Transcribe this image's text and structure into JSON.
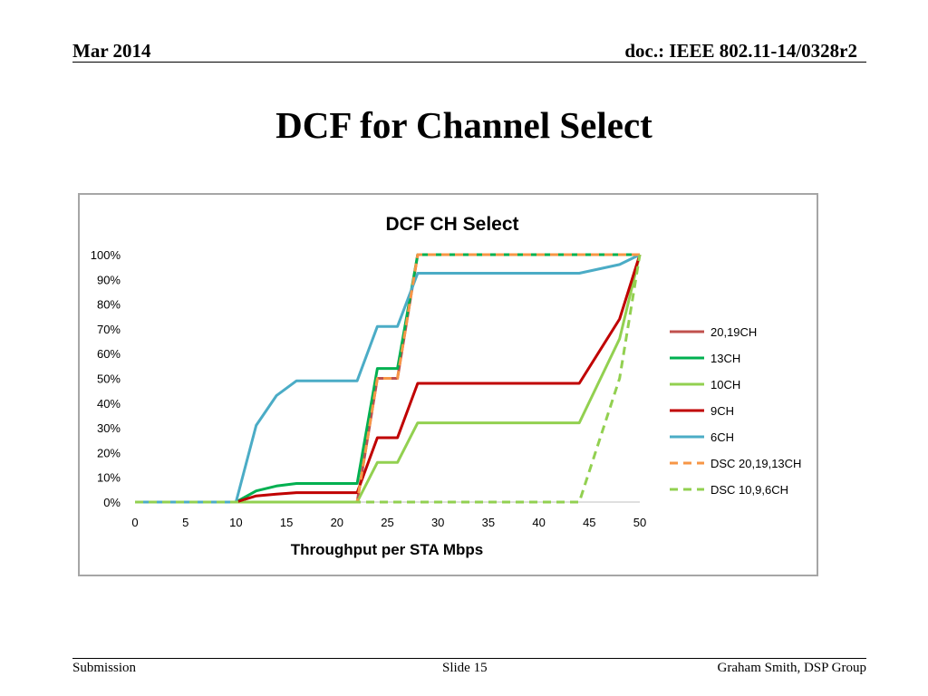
{
  "header": {
    "date": "Mar 2014",
    "doc_id": "doc.: IEEE 802.11-14/0328r2"
  },
  "slide_title": "DCF for Channel Select",
  "footer": {
    "left": "Submission",
    "center": "Slide 15",
    "right": "Graham Smith, DSP Group"
  },
  "chart_data": {
    "type": "line",
    "title": "DCF CH Select",
    "xlabel": "Throughput per STA Mbps",
    "ylabel": "",
    "xlim": [
      0,
      50
    ],
    "ylim": [
      0,
      100
    ],
    "x_ticks": [
      0,
      5,
      10,
      15,
      20,
      25,
      30,
      35,
      40,
      45,
      50
    ],
    "y_ticks": [
      "0%",
      "10%",
      "20%",
      "30%",
      "40%",
      "50%",
      "60%",
      "70%",
      "80%",
      "90%",
      "100%"
    ],
    "grid": false,
    "legend_position": "right",
    "series": [
      {
        "name": "20,19CH",
        "color": "#c0504d",
        "dashed": false,
        "x": [
          0,
          22,
          24,
          26,
          28,
          50
        ],
        "y": [
          0,
          0,
          50,
          50,
          100,
          100
        ]
      },
      {
        "name": "13CH",
        "color": "#00b050",
        "dashed": false,
        "x": [
          0,
          10,
          12,
          14,
          16,
          18,
          20,
          22,
          24,
          26,
          28,
          50
        ],
        "y": [
          0,
          0,
          4.5,
          6.5,
          7.5,
          7.5,
          7.5,
          7.5,
          54,
          54,
          100,
          100
        ]
      },
      {
        "name": "10CH",
        "color": "#92d050",
        "dashed": false,
        "x": [
          0,
          22,
          24,
          26,
          28,
          44,
          48,
          50
        ],
        "y": [
          0,
          0,
          16,
          16,
          32,
          32,
          66,
          100
        ]
      },
      {
        "name": "9CH",
        "color": "#c00000",
        "dashed": false,
        "x": [
          0,
          10,
          12,
          14,
          16,
          18,
          20,
          22,
          24,
          26,
          28,
          44,
          48,
          50
        ],
        "y": [
          0,
          0,
          2.5,
          3.2,
          3.8,
          3.8,
          3.8,
          3.8,
          26,
          26,
          48,
          48,
          74,
          100
        ]
      },
      {
        "name": "6CH",
        "color": "#4bacc6",
        "dashed": false,
        "x": [
          0,
          10,
          12,
          14,
          16,
          18,
          20,
          22,
          24,
          26,
          28,
          44,
          48,
          50
        ],
        "y": [
          0,
          0,
          31,
          43,
          49,
          49,
          49,
          49,
          71,
          71,
          92.5,
          92.5,
          96,
          100
        ]
      },
      {
        "name": "DSC 20,19,13CH",
        "color": "#f79646",
        "dashed": true,
        "x": [
          0,
          22,
          24,
          26,
          28,
          50
        ],
        "y": [
          0,
          0,
          50,
          50,
          100,
          100
        ]
      },
      {
        "name": "DSC 10,9,6CH",
        "color": "#92d050",
        "dashed": true,
        "x": [
          0,
          44,
          48,
          50
        ],
        "y": [
          0,
          0,
          50,
          100
        ]
      }
    ]
  }
}
